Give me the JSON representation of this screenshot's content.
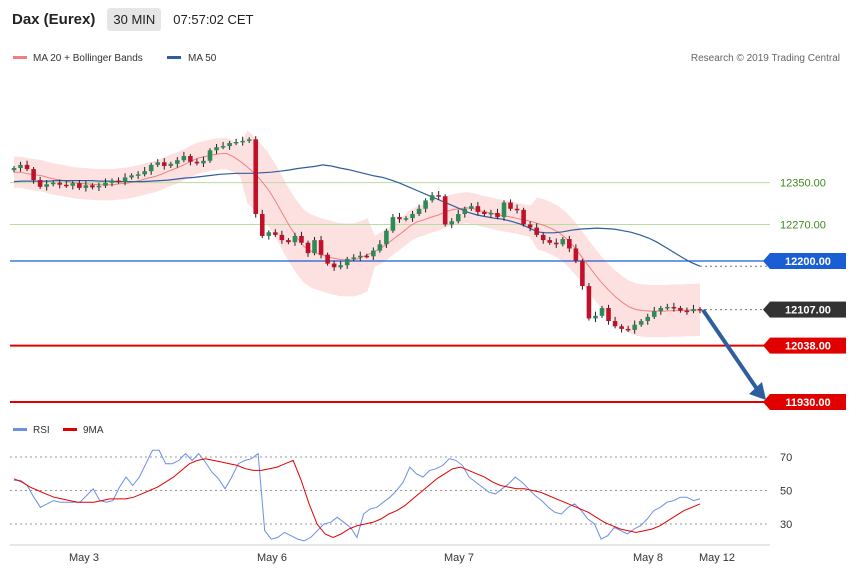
{
  "header": {
    "instrument": "Dax (Eurex)",
    "timeframe": "30 MIN",
    "time": "07:57:02 CET"
  },
  "colors": {
    "ma20": "#f08080",
    "ma50": "#2e5e9e",
    "band_fill": "#fde1e1",
    "up": "#2e8b57",
    "down": "#c0102a",
    "support": "#e10000",
    "pivot": "#1a5ed6",
    "hline_green": "#b9dca0",
    "rsi": "#6b8ee6",
    "rsi_ma": "#e10000",
    "arrow": "#2e5e9e"
  },
  "legend": {
    "ma20": "MA 20 + Bollinger Bands",
    "ma50": "MA 50",
    "credit": "Research © 2019 Trading Central",
    "rsi": "RSI",
    "rsi_ma": "9MA"
  },
  "chart_data": [
    {
      "type": "line",
      "title": "Dax (Eurex)",
      "xlabel": "",
      "ylabel": "",
      "x_ticks": [
        "May 3",
        "May 6",
        "May 7",
        "May 8",
        "May 12"
      ],
      "y_levels": [
        {
          "value": 12350.0,
          "label": "12350.00",
          "style": "green"
        },
        {
          "value": 12270.0,
          "label": "12270.00",
          "style": "green"
        },
        {
          "value": 12200.0,
          "label": "12200.00",
          "style": "pivot"
        },
        {
          "value": 12107.0,
          "label": "12107.00",
          "style": "current"
        },
        {
          "value": 12038.0,
          "label": "12038.00",
          "style": "support"
        },
        {
          "value": 11930.0,
          "label": "11930.00",
          "style": "support"
        }
      ],
      "ylim": [
        11930,
        12470
      ],
      "series": [
        {
          "name": "Price",
          "values": [
            12378,
            12384,
            12376,
            12355,
            12342,
            12347,
            12350,
            12346,
            12344,
            12349,
            12340,
            12345,
            12341,
            12344,
            12350,
            12354,
            12352,
            12360,
            12364,
            12366,
            12372,
            12384,
            12389,
            12382,
            12386,
            12393,
            12401,
            12390,
            12387,
            12392,
            12412,
            12418,
            12420,
            12426,
            12428,
            12430,
            12433,
            12290,
            12248,
            12255,
            12250,
            12240,
            12236,
            12248,
            12235,
            12215,
            12240,
            12212,
            12195,
            12188,
            12192,
            12204,
            12207,
            12210,
            12209,
            12220,
            12232,
            12258,
            12284,
            12280,
            12282,
            12290,
            12300,
            12316,
            12326,
            12324,
            12270,
            12276,
            12290,
            12300,
            12305,
            12294,
            12290,
            12292,
            12284,
            12312,
            12300,
            12298,
            12270,
            12264,
            12250,
            12240,
            12235,
            12232,
            12242,
            12224,
            12200,
            12152,
            12090,
            12095,
            12110,
            12085,
            12075,
            12070,
            12068,
            12078,
            12085,
            12093,
            12104,
            12110,
            12112,
            12110,
            12105,
            12104,
            12108,
            12107
          ]
        },
        {
          "name": "MA 20",
          "values": [
            12370,
            12370,
            12367,
            12365,
            12363,
            12359,
            12356,
            12354,
            12351,
            12349,
            12348,
            12347,
            12346,
            12346,
            12346,
            12348,
            12349,
            12352,
            12355,
            12359,
            12362,
            12367,
            12373,
            12378,
            12384,
            12391,
            12397,
            12400,
            12403,
            12405,
            12406,
            12400,
            12391,
            12380,
            12368,
            12353,
            12336,
            12314,
            12290,
            12266,
            12245,
            12228,
            12219,
            12214,
            12210,
            12206,
            12203,
            12202,
            12202,
            12206,
            12212,
            12218,
            12226,
            12235,
            12246,
            12256,
            12267,
            12275,
            12279,
            12284,
            12288,
            12294,
            12298,
            12300,
            12302,
            12300,
            12296,
            12293,
            12290,
            12287,
            12285,
            12282,
            12279,
            12276,
            12272,
            12268,
            12262,
            12255,
            12244,
            12230,
            12213,
            12195,
            12177,
            12160,
            12145,
            12132,
            12121,
            12112,
            12107,
            12105,
            12104,
            12104,
            12104,
            12105,
            12105,
            12106,
            12106,
            12107
          ]
        },
        {
          "name": "MA 50",
          "values": [
            12352,
            12353,
            12353,
            12353,
            12353,
            12354,
            12354,
            12354,
            12354,
            12354,
            12353,
            12353,
            12352,
            12352,
            12352,
            12352,
            12353,
            12354,
            12355,
            12357,
            12359,
            12360,
            12362,
            12364,
            12366,
            12367,
            12368,
            12368,
            12368,
            12369,
            12370,
            12372,
            12374,
            12377,
            12379,
            12381,
            12384,
            12382,
            12378,
            12375,
            12371,
            12367,
            12363,
            12360,
            12355,
            12349,
            12342,
            12335,
            12328,
            12321,
            12314,
            12307,
            12300,
            12293,
            12288,
            12285,
            12282,
            12280,
            12276,
            12271,
            12264,
            12256,
            12254,
            12254,
            12256,
            12259,
            12261,
            12262,
            12263,
            12262,
            12261,
            12258,
            12255,
            12250,
            12244,
            12236,
            12226,
            12216,
            12206,
            12197,
            12190
          ]
        },
        {
          "name": "RSI",
          "values": [
            56,
            56,
            53,
            46,
            40,
            42,
            44,
            43,
            43,
            43,
            43,
            47,
            51,
            44,
            43,
            44,
            52,
            58,
            53,
            58,
            66,
            74,
            74,
            66,
            66,
            68,
            72,
            68,
            72,
            67,
            61,
            57,
            51,
            58,
            66,
            68,
            69,
            72,
            26,
            21,
            22,
            25,
            23,
            21,
            20,
            22,
            26,
            30,
            31,
            34,
            31,
            28,
            22,
            36,
            39,
            40,
            43,
            46,
            50,
            55,
            64,
            60,
            58,
            62,
            63,
            65,
            69,
            68,
            65,
            58,
            55,
            52,
            49,
            48,
            51,
            54,
            58,
            55,
            51,
            47,
            44,
            40,
            37,
            36,
            40,
            42,
            38,
            33,
            30,
            21,
            23,
            28,
            26,
            24,
            27,
            29,
            33,
            38,
            40,
            43,
            44,
            46,
            46,
            44,
            45
          ]
        },
        {
          "name": "9MA",
          "values": [
            57,
            55,
            52,
            50,
            48,
            46,
            45,
            44,
            43,
            43,
            43,
            44,
            45,
            45,
            45,
            46,
            48,
            50,
            52,
            55,
            58,
            62,
            66,
            68,
            69,
            68,
            67,
            66,
            65,
            63,
            62,
            62,
            63,
            64,
            66,
            68,
            56,
            42,
            30,
            24,
            22,
            24,
            27,
            29,
            30,
            31,
            33,
            36,
            38,
            41,
            45,
            49,
            53,
            57,
            60,
            63,
            64,
            62,
            60,
            58,
            55,
            53,
            52,
            51,
            51,
            50,
            49,
            47,
            45,
            43,
            41,
            39,
            37,
            34,
            31,
            29,
            27,
            26,
            25,
            26,
            27,
            29,
            32,
            35,
            38,
            40,
            42
          ]
        }
      ]
    }
  ]
}
